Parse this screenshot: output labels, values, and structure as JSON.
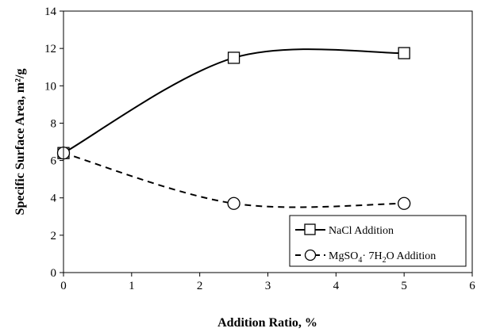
{
  "chart_data": {
    "type": "line",
    "title": "",
    "xlabel": "Addition Ratio, %",
    "ylabel": "Specific Surface  Area, m²/g",
    "xlim": [
      0,
      6
    ],
    "ylim": [
      0,
      14
    ],
    "x_ticks": [
      "0",
      "1",
      "2",
      "3",
      "4",
      "5",
      "6"
    ],
    "y_ticks": [
      "0",
      "2",
      "4",
      "6",
      "8",
      "10",
      "12",
      "14"
    ],
    "grid": false,
    "legend_position": "bottom-right",
    "series": [
      {
        "name": "NaCl Addition",
        "marker": "square",
        "line_style": "solid",
        "color": "#000000",
        "x": [
          0,
          2.5,
          5
        ],
        "y": [
          6.4,
          11.5,
          11.75
        ]
      },
      {
        "name": "MgSO4·7H2O Addition",
        "name_parts": {
          "a": "MgSO",
          "b": "4",
          "c": "· 7H",
          "d": "2",
          "e": "O Addition"
        },
        "marker": "circle",
        "line_style": "dashed",
        "color": "#000000",
        "x": [
          0,
          2.5,
          5
        ],
        "y": [
          6.4,
          3.7,
          3.7
        ]
      }
    ]
  }
}
